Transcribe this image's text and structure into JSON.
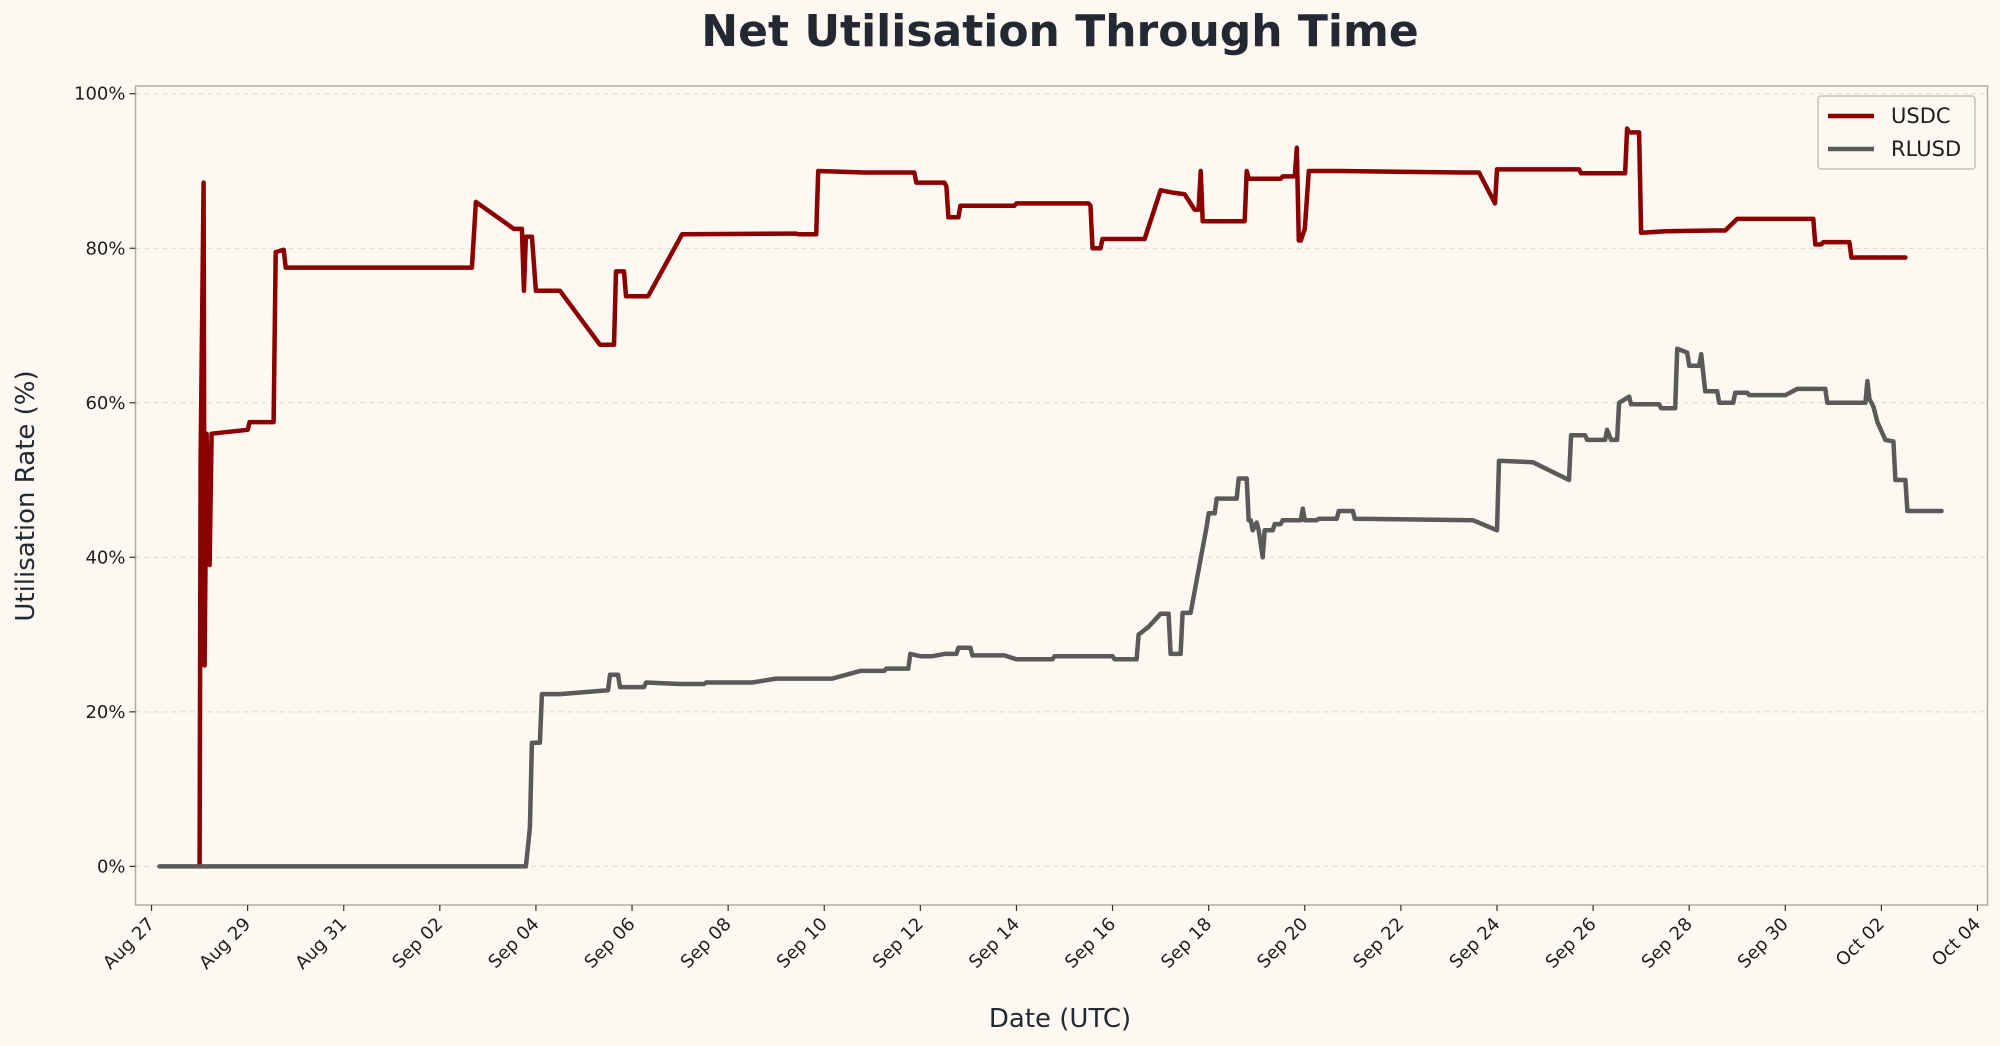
{
  "chart_data": {
    "type": "line",
    "title": "Net Utilisation Through Time",
    "xlabel": "Date (UTC)",
    "ylabel": "Utilisation Rate (%)",
    "x_range": [
      "2025-08-26T16:00",
      "2025-10-04T05:00"
    ],
    "ylim": [
      -5,
      101
    ],
    "y_ticks": [
      0,
      20,
      40,
      60,
      80,
      100
    ],
    "y_tick_labels": [
      "0%",
      "20%",
      "40%",
      "60%",
      "80%",
      "100%"
    ],
    "x_ticks": [
      "2025-08-27",
      "2025-08-29",
      "2025-08-31",
      "2025-09-02",
      "2025-09-04",
      "2025-09-06",
      "2025-09-08",
      "2025-09-10",
      "2025-09-12",
      "2025-09-14",
      "2025-09-16",
      "2025-09-18",
      "2025-09-20",
      "2025-09-22",
      "2025-09-24",
      "2025-09-26",
      "2025-09-28",
      "2025-09-30",
      "2025-10-02",
      "2025-10-04"
    ],
    "x_tick_labels": [
      "Aug 27",
      "Aug 29",
      "Aug 31",
      "Sep 02",
      "Sep 04",
      "Sep 06",
      "Sep 08",
      "Sep 10",
      "Sep 12",
      "Sep 14",
      "Sep 16",
      "Sep 18",
      "Sep 20",
      "Sep 22",
      "Sep 24",
      "Sep 26",
      "Sep 28",
      "Sep 30",
      "Oct 02",
      "Oct 04"
    ],
    "grid": "horizontal-dashed",
    "legend_position": "top-right",
    "series": [
      {
        "name": "USDC",
        "color": "#8b0000",
        "points": [
          [
            "2025-08-28T00:00",
            0
          ],
          [
            "2025-08-28T00:30",
            52.5
          ],
          [
            "2025-08-28T02:00",
            88.5
          ],
          [
            "2025-08-28T02:30",
            26
          ],
          [
            "2025-08-28T03:30",
            56
          ],
          [
            "2025-08-28T05:00",
            39
          ],
          [
            "2025-08-28T06:00",
            56
          ],
          [
            "2025-08-29T00:00",
            56.5
          ],
          [
            "2025-08-29T01:00",
            57.5
          ],
          [
            "2025-08-29T13:00",
            57.5
          ],
          [
            "2025-08-29T14:00",
            79.5
          ],
          [
            "2025-08-29T18:00",
            79.8
          ],
          [
            "2025-08-29T19:00",
            77.5
          ],
          [
            "2025-09-02T16:00",
            77.5
          ],
          [
            "2025-09-02T18:00",
            86
          ],
          [
            "2025-09-03T13:00",
            82.5
          ],
          [
            "2025-09-03T17:00",
            82.5
          ],
          [
            "2025-09-03T18:00",
            74.5
          ],
          [
            "2025-09-03T19:00",
            81.5
          ],
          [
            "2025-09-03T22:00",
            81.5
          ],
          [
            "2025-09-04T00:00",
            74.5
          ],
          [
            "2025-09-04T12:00",
            74.5
          ],
          [
            "2025-09-05T08:00",
            67.5
          ],
          [
            "2025-09-05T15:00",
            67.5
          ],
          [
            "2025-09-05T16:00",
            77
          ],
          [
            "2025-09-05T20:00",
            77
          ],
          [
            "2025-09-05T21:00",
            73.8
          ],
          [
            "2025-09-06T08:00",
            73.8
          ],
          [
            "2025-09-07T01:00",
            81.8
          ],
          [
            "2025-09-09T06:00",
            81.9
          ],
          [
            "2025-09-09T10:00",
            81.9
          ],
          [
            "2025-09-09T11:00",
            81.8
          ],
          [
            "2025-09-09T20:00",
            81.8
          ],
          [
            "2025-09-09T21:00",
            90
          ],
          [
            "2025-09-10T20:00",
            89.8
          ],
          [
            "2025-09-11T21:00",
            89.8
          ],
          [
            "2025-09-11T22:00",
            88.5
          ],
          [
            "2025-09-12T12:00",
            88.5
          ],
          [
            "2025-09-12T13:00",
            88
          ],
          [
            "2025-09-12T14:00",
            84
          ],
          [
            "2025-09-12T19:00",
            84
          ],
          [
            "2025-09-12T20:00",
            85.5
          ],
          [
            "2025-09-13T23:00",
            85.5
          ],
          [
            "2025-09-14T00:00",
            85.8
          ],
          [
            "2025-09-15T12:00",
            85.8
          ],
          [
            "2025-09-15T13:00",
            85.5
          ],
          [
            "2025-09-15T14:00",
            80
          ],
          [
            "2025-09-15T18:00",
            80
          ],
          [
            "2025-09-15T19:00",
            81.2
          ],
          [
            "2025-09-16T16:00",
            81.2
          ],
          [
            "2025-09-17T00:00",
            87.5
          ],
          [
            "2025-09-17T06:00",
            87.2
          ],
          [
            "2025-09-17T12:00",
            87
          ],
          [
            "2025-09-17T17:00",
            85
          ],
          [
            "2025-09-17T19:00",
            85
          ],
          [
            "2025-09-17T20:00",
            90
          ],
          [
            "2025-09-17T21:00",
            83.5
          ],
          [
            "2025-09-18T18:00",
            83.5
          ],
          [
            "2025-09-18T19:00",
            90
          ],
          [
            "2025-09-18T20:00",
            89
          ],
          [
            "2025-09-19T12:00",
            89
          ],
          [
            "2025-09-19T13:00",
            89.3
          ],
          [
            "2025-09-19T19:00",
            89.3
          ],
          [
            "2025-09-19T20:00",
            93
          ],
          [
            "2025-09-19T21:00",
            81
          ],
          [
            "2025-09-19T22:00",
            81
          ],
          [
            "2025-09-20T00:00",
            82.5
          ],
          [
            "2025-09-20T02:00",
            90
          ],
          [
            "2025-09-20T18:00",
            90
          ],
          [
            "2025-09-23T07:00",
            89.8
          ],
          [
            "2025-09-23T15:00",
            89.8
          ],
          [
            "2025-09-23T23:00",
            85.8
          ],
          [
            "2025-09-24T00:00",
            90.2
          ],
          [
            "2025-09-25T17:00",
            90.2
          ],
          [
            "2025-09-25T18:00",
            89.7
          ],
          [
            "2025-09-26T16:00",
            89.7
          ],
          [
            "2025-09-26T17:00",
            95.5
          ],
          [
            "2025-09-26T18:00",
            95
          ],
          [
            "2025-09-26T23:00",
            95
          ],
          [
            "2025-09-27T00:00",
            82
          ],
          [
            "2025-09-27T12:00",
            82.2
          ],
          [
            "2025-09-28T12:00",
            82.3
          ],
          [
            "2025-09-28T18:00",
            82.3
          ],
          [
            "2025-09-29T00:00",
            83.8
          ],
          [
            "2025-09-30T14:00",
            83.8
          ],
          [
            "2025-09-30T15:00",
            80.5
          ],
          [
            "2025-09-30T18:00",
            80.5
          ],
          [
            "2025-09-30T19:00",
            80.8
          ],
          [
            "2025-10-01T08:00",
            80.8
          ],
          [
            "2025-10-01T09:00",
            78.8
          ],
          [
            "2025-10-02T12:00",
            78.8
          ]
        ]
      },
      {
        "name": "RLUSD",
        "color": "#5a5a5a",
        "points": [
          [
            "2025-08-27T04:00",
            0
          ],
          [
            "2025-09-03T19:00",
            0
          ],
          [
            "2025-09-03T21:00",
            5
          ],
          [
            "2025-09-03T22:00",
            16
          ],
          [
            "2025-09-04T02:00",
            16
          ],
          [
            "2025-09-04T03:00",
            22.3
          ],
          [
            "2025-09-04T12:00",
            22.3
          ],
          [
            "2025-09-05T12:00",
            22.8
          ],
          [
            "2025-09-05T13:00",
            24.8
          ],
          [
            "2025-09-05T17:00",
            24.8
          ],
          [
            "2025-09-05T18:00",
            23.2
          ],
          [
            "2025-09-06T06:00",
            23.2
          ],
          [
            "2025-09-06T07:00",
            23.8
          ],
          [
            "2025-09-07T00:00",
            23.6
          ],
          [
            "2025-09-07T12:00",
            23.6
          ],
          [
            "2025-09-07T13:00",
            23.8
          ],
          [
            "2025-09-08T12:00",
            23.8
          ],
          [
            "2025-09-09T00:00",
            24.3
          ],
          [
            "2025-09-10T04:00",
            24.3
          ],
          [
            "2025-09-10T18:00",
            25.3
          ],
          [
            "2025-09-11T06:00",
            25.3
          ],
          [
            "2025-09-11T07:00",
            25.6
          ],
          [
            "2025-09-11T18:00",
            25.6
          ],
          [
            "2025-09-11T19:00",
            27.5
          ],
          [
            "2025-09-12T00:00",
            27.2
          ],
          [
            "2025-09-12T06:00",
            27.2
          ],
          [
            "2025-09-12T12:00",
            27.5
          ],
          [
            "2025-09-12T18:00",
            27.5
          ],
          [
            "2025-09-12T19:00",
            28.3
          ],
          [
            "2025-09-13T01:00",
            28.3
          ],
          [
            "2025-09-13T02:00",
            27.3
          ],
          [
            "2025-09-13T18:00",
            27.3
          ],
          [
            "2025-09-14T00:00",
            26.8
          ],
          [
            "2025-09-14T18:00",
            26.8
          ],
          [
            "2025-09-14T19:00",
            27.2
          ],
          [
            "2025-09-16T00:00",
            27.2
          ],
          [
            "2025-09-16T01:00",
            26.8
          ],
          [
            "2025-09-16T12:00",
            26.8
          ],
          [
            "2025-09-16T13:00",
            30
          ],
          [
            "2025-09-16T18:00",
            31
          ],
          [
            "2025-09-17T00:00",
            32.7
          ],
          [
            "2025-09-17T04:00",
            32.7
          ],
          [
            "2025-09-17T05:00",
            27.5
          ],
          [
            "2025-09-17T10:00",
            27.5
          ],
          [
            "2025-09-17T11:00",
            32.8
          ],
          [
            "2025-09-17T15:00",
            32.8
          ],
          [
            "2025-09-17T23:00",
            44
          ],
          [
            "2025-09-18T00:00",
            45.7
          ],
          [
            "2025-09-18T03:00",
            45.7
          ],
          [
            "2025-09-18T04:00",
            47.6
          ],
          [
            "2025-09-18T14:00",
            47.6
          ],
          [
            "2025-09-18T15:00",
            50.2
          ],
          [
            "2025-09-18T19:00",
            50.2
          ],
          [
            "2025-09-18T20:00",
            44.8
          ],
          [
            "2025-09-18T21:00",
            44.8
          ],
          [
            "2025-09-18T22:00",
            43.5
          ],
          [
            "2025-09-19T00:00",
            44.5
          ],
          [
            "2025-09-19T01:00",
            43.5
          ],
          [
            "2025-09-19T03:00",
            40
          ],
          [
            "2025-09-19T04:00",
            43.5
          ],
          [
            "2025-09-19T08:00",
            43.5
          ],
          [
            "2025-09-19T09:00",
            44.3
          ],
          [
            "2025-09-19T12:00",
            44.3
          ],
          [
            "2025-09-19T13:00",
            44.8
          ],
          [
            "2025-09-19T22:00",
            44.8
          ],
          [
            "2025-09-19T23:00",
            46.3
          ],
          [
            "2025-09-20T00:00",
            44.8
          ],
          [
            "2025-09-20T06:00",
            44.8
          ],
          [
            "2025-09-20T07:00",
            45
          ],
          [
            "2025-09-20T16:00",
            45
          ],
          [
            "2025-09-20T17:00",
            46
          ],
          [
            "2025-09-21T00:00",
            46
          ],
          [
            "2025-09-21T01:00",
            45
          ],
          [
            "2025-09-23T12:00",
            44.8
          ],
          [
            "2025-09-24T00:00",
            43.5
          ],
          [
            "2025-09-24T01:00",
            52.5
          ],
          [
            "2025-09-24T18:00",
            52.3
          ],
          [
            "2025-09-25T12:00",
            50
          ],
          [
            "2025-09-25T13:00",
            55.8
          ],
          [
            "2025-09-25T20:00",
            55.8
          ],
          [
            "2025-09-25T21:00",
            55.2
          ],
          [
            "2025-09-26T06:00",
            55.2
          ],
          [
            "2025-09-26T07:00",
            56.5
          ],
          [
            "2025-09-26T09:00",
            55.2
          ],
          [
            "2025-09-26T12:00",
            55.2
          ],
          [
            "2025-09-26T13:00",
            60
          ],
          [
            "2025-09-26T18:00",
            60.8
          ],
          [
            "2025-09-26T19:00",
            59.8
          ],
          [
            "2025-09-27T09:00",
            59.8
          ],
          [
            "2025-09-27T10:00",
            59.3
          ],
          [
            "2025-09-27T17:00",
            59.3
          ],
          [
            "2025-09-27T18:00",
            67
          ],
          [
            "2025-09-27T23:00",
            66.5
          ],
          [
            "2025-09-28T00:00",
            64.8
          ],
          [
            "2025-09-28T05:00",
            64.8
          ],
          [
            "2025-09-28T06:00",
            66.3
          ],
          [
            "2025-09-28T08:00",
            61.5
          ],
          [
            "2025-09-28T14:00",
            61.5
          ],
          [
            "2025-09-28T15:00",
            60
          ],
          [
            "2025-09-28T22:00",
            60
          ],
          [
            "2025-09-28T23:00",
            61.3
          ],
          [
            "2025-09-29T05:00",
            61.3
          ],
          [
            "2025-09-29T06:00",
            61
          ],
          [
            "2025-09-30T00:00",
            61
          ],
          [
            "2025-09-30T06:00",
            61.8
          ],
          [
            "2025-09-30T20:00",
            61.8
          ],
          [
            "2025-09-30T21:00",
            60
          ],
          [
            "2025-10-01T16:00",
            60
          ],
          [
            "2025-10-01T17:00",
            62.8
          ],
          [
            "2025-10-01T18:00",
            60.5
          ],
          [
            "2025-10-01T20:00",
            59.5
          ],
          [
            "2025-10-01T22:00",
            57.5
          ],
          [
            "2025-10-02T02:00",
            55.2
          ],
          [
            "2025-10-02T06:00",
            55
          ],
          [
            "2025-10-02T07:00",
            50
          ],
          [
            "2025-10-02T12:00",
            50
          ],
          [
            "2025-10-02T13:00",
            46
          ],
          [
            "2025-10-03T06:00",
            46
          ]
        ]
      }
    ]
  }
}
